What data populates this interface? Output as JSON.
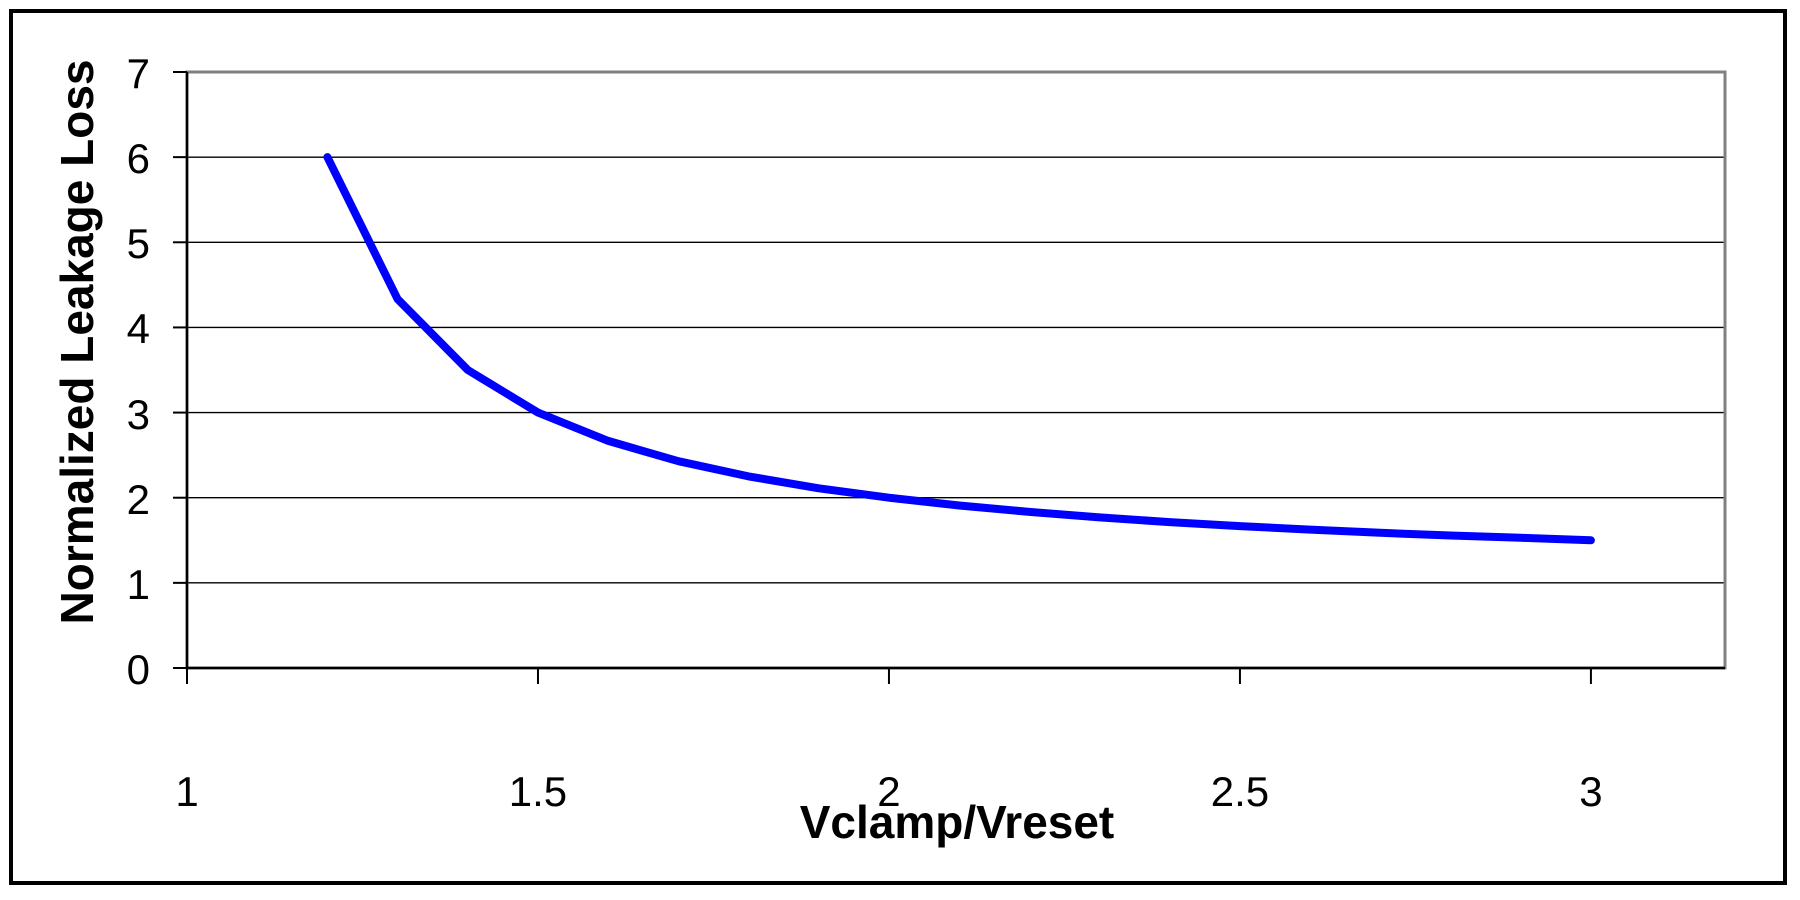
{
  "chart_data": {
    "type": "line",
    "title": "",
    "xlabel": "Vclamp/Vreset",
    "ylabel": "Normalized Leakage Loss",
    "x": [
      1.2,
      1.3,
      1.4,
      1.5,
      1.6,
      1.7,
      1.8,
      1.9,
      2.0,
      2.1,
      2.2,
      2.3,
      2.4,
      2.5,
      2.6,
      2.7,
      2.8,
      2.9,
      3.0
    ],
    "y": [
      6.0,
      4.333,
      3.5,
      3.0,
      2.667,
      2.429,
      2.25,
      2.111,
      2.0,
      1.909,
      1.833,
      1.769,
      1.714,
      1.667,
      1.625,
      1.588,
      1.556,
      1.529,
      1.5
    ],
    "xticks": [
      1,
      1.5,
      2,
      2.5,
      3
    ],
    "xtick_labels": [
      "1",
      "1.5",
      "2",
      "2.5",
      "3"
    ],
    "yticks": [
      0,
      1,
      2,
      3,
      4,
      5,
      6,
      7
    ],
    "ytick_labels": [
      "0",
      "1",
      "2",
      "3",
      "4",
      "5",
      "6",
      "7"
    ],
    "xlim": [
      1,
      3.191
    ],
    "ylim": [
      0,
      7
    ],
    "grid": true,
    "legend": false,
    "line_color": "#0000ff",
    "grid_color": "#000000",
    "axis_color": "#000000",
    "plot_border_color": "#808080",
    "outer_border_color": "#000000",
    "background_color": "#ffffff"
  }
}
